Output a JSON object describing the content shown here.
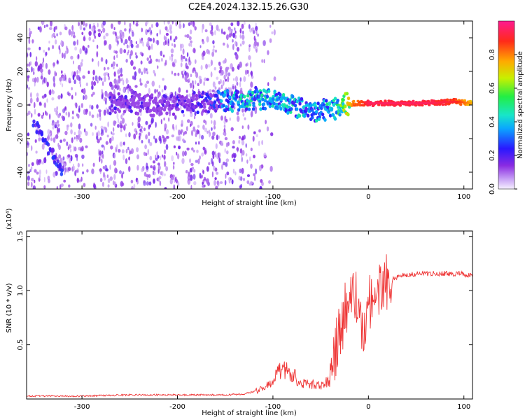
{
  "title": "C2E4.2024.132.15.26.G30",
  "colors": {
    "snr_line": "#ee3333",
    "spectrogram_background": "#ffffff",
    "colorbar_scale": "rainbow: white-violet → purple → blue → cyan → green → yellow → orange → red → magenta"
  },
  "chart_data": [
    {
      "type": "heatmap",
      "name": "spectrogram",
      "xlabel": "Height of straight line (km)",
      "ylabel": "Frequency (Hz)",
      "xlim": [
        -358,
        109
      ],
      "ylim": [
        -50,
        50
      ],
      "x_ticks": [
        -300,
        -200,
        -100,
        0,
        100
      ],
      "y_ticks": [
        -40,
        -20,
        0,
        20,
        40
      ],
      "x_tick_labels": [
        "-300",
        "-200",
        "-100",
        "0",
        "100"
      ],
      "y_tick_labels": [
        "-40",
        "-20",
        "0",
        "20",
        "40"
      ],
      "colorbar": {
        "label": "Normalized spectral amplitude",
        "range": [
          0,
          1
        ],
        "ticks": [
          0.0,
          0.2,
          0.4,
          0.6,
          0.8
        ],
        "tick_labels": [
          "0.0",
          "0.2",
          "0.4",
          "0.6",
          "0.8"
        ]
      },
      "grid": false,
      "signal_ridge": {
        "x": [
          -270,
          -220,
          -170,
          -140,
          -120,
          -100,
          -80,
          -60,
          -45,
          -35,
          -25,
          -15,
          -5,
          0,
          30,
          60,
          90,
          109
        ],
        "frequency": [
          1,
          0,
          2,
          2,
          4,
          3,
          0,
          -4,
          -3,
          -2,
          0,
          1,
          1,
          1,
          1,
          1,
          2,
          1
        ],
        "amplitude": [
          0.25,
          0.2,
          0.3,
          0.5,
          0.5,
          0.5,
          0.5,
          0.45,
          0.5,
          0.55,
          0.7,
          0.85,
          0.9,
          0.95,
          0.95,
          0.95,
          0.9,
          0.75
        ]
      },
      "noise_region_x": [
        -358,
        -130
      ],
      "diagonal_streak": {
        "x": [
          -350,
          -320
        ],
        "frequency": [
          -10,
          -40
        ]
      }
    },
    {
      "type": "line",
      "name": "snr",
      "xlabel": "Height of straight line (km)",
      "ylabel": "SNR (10 * v/v)",
      "y_scale_label": "(x10⁴)",
      "xlim": [
        -358,
        109
      ],
      "ylim": [
        0,
        1.55
      ],
      "x_ticks": [
        -300,
        -200,
        -100,
        0,
        100
      ],
      "y_ticks": [
        0.5,
        1.0,
        1.5
      ],
      "x_tick_labels": [
        "-300",
        "-200",
        "-100",
        "0",
        "100"
      ],
      "y_tick_labels": [
        "0.5",
        "1.0",
        "1.5"
      ],
      "grid": false,
      "series": [
        {
          "x": [
            -358,
            -300,
            -250,
            -200,
            -150,
            -130,
            -110,
            -100,
            -90,
            -80,
            -70,
            -60,
            -50,
            -40,
            -35,
            -30,
            -25,
            -20,
            -15,
            -10,
            -5,
            0,
            10,
            20,
            40,
            60,
            80,
            100,
            109
          ],
          "values": [
            0.02,
            0.02,
            0.03,
            0.03,
            0.03,
            0.04,
            0.08,
            0.15,
            0.25,
            0.2,
            0.12,
            0.12,
            0.1,
            0.15,
            0.45,
            0.6,
            0.8,
            0.9,
            1.05,
            0.75,
            0.65,
            0.9,
            1.0,
            1.1,
            1.15,
            1.16,
            1.16,
            1.15,
            1.14
          ]
        }
      ]
    }
  ]
}
